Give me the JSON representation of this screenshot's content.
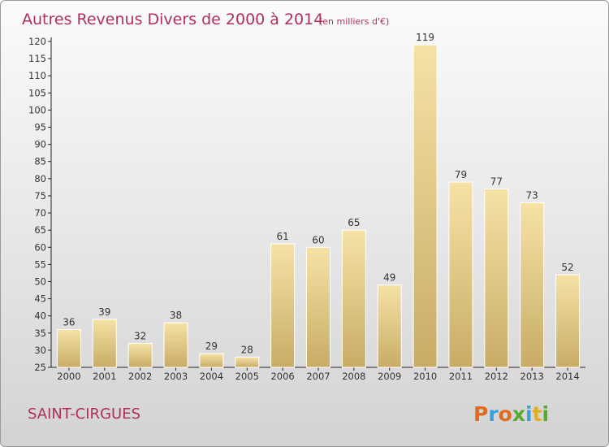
{
  "header": {
    "title": "Autres Revenus Divers de 2000 à 2014",
    "subtitle": "(en milliers d'€)"
  },
  "footer": {
    "place": "SAINT-CIRGUES",
    "brand": "Proxiti"
  },
  "colors": {
    "title": "#b0305a",
    "bar_light": "#f6e2a6",
    "bar_dark": "#c8ac66",
    "brand_letters": [
      "#e06a1e",
      "#3aa0d8",
      "#e06a1e",
      "#5aa832",
      "#3aa0d8",
      "#e0b020",
      "#5aa832"
    ]
  },
  "chart_data": {
    "type": "bar",
    "title": "Autres Revenus Divers de 2000 à 2014",
    "subtitle": "(en milliers d'€)",
    "categories": [
      "2000",
      "2001",
      "2002",
      "2003",
      "2004",
      "2005",
      "2006",
      "2007",
      "2008",
      "2009",
      "2010",
      "2011",
      "2012",
      "2013",
      "2014"
    ],
    "values": [
      36,
      39,
      32,
      38,
      29,
      28,
      61,
      60,
      65,
      49,
      119,
      79,
      77,
      73,
      52
    ],
    "ylim": [
      25,
      120
    ],
    "yticks": [
      25,
      30,
      35,
      40,
      45,
      50,
      55,
      60,
      65,
      70,
      75,
      80,
      85,
      90,
      95,
      100,
      105,
      110,
      115,
      120
    ],
    "grid": false,
    "legend": "none"
  }
}
